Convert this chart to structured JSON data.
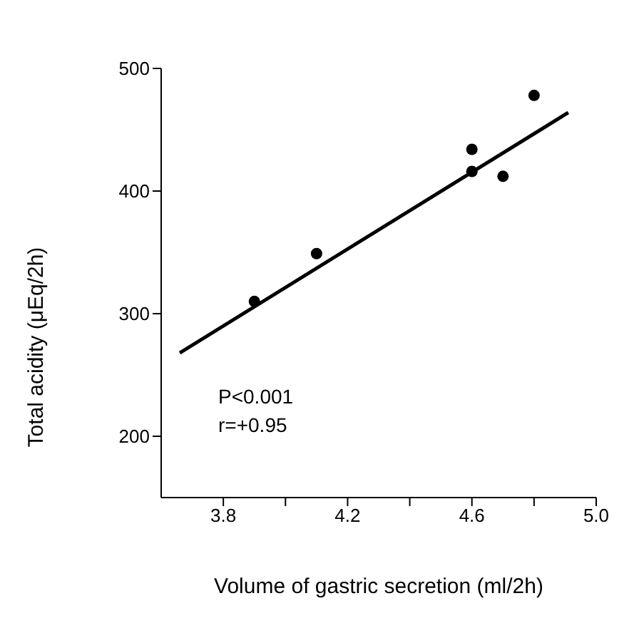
{
  "chart_data": {
    "type": "scatter",
    "xlabel": "Volume of gastric secretion (ml/2h)",
    "ylabel": "Total acidity (μEq/2h)",
    "xlim": [
      3.6,
      5.0
    ],
    "xticks": [
      3.8,
      {
        "value": 4.0,
        "label": null
      },
      4.2,
      {
        "value": 4.4,
        "label": null
      },
      4.6,
      {
        "value": 4.8,
        "label": null
      },
      {
        "value": 5,
        "label": "5.0"
      }
    ],
    "ylim": [
      150,
      500
    ],
    "yticks": [
      200,
      300,
      400,
      500
    ],
    "series": [
      {
        "color": "#000000",
        "marker": "circle",
        "x": [
          3.9,
          4.1,
          4.6,
          4.6,
          4.7,
          4.8
        ],
        "values": [
          310,
          349,
          434,
          416,
          412,
          478
        ]
      },
      {
        "type": "line",
        "color": "#000000",
        "marker": "none",
        "x": [
          3.66,
          4.91
        ],
        "values": [
          268,
          464
        ]
      }
    ],
    "annotations": [
      "P<0.001",
      "r=+0.95"
    ],
    "grid": false,
    "legend": false
  }
}
